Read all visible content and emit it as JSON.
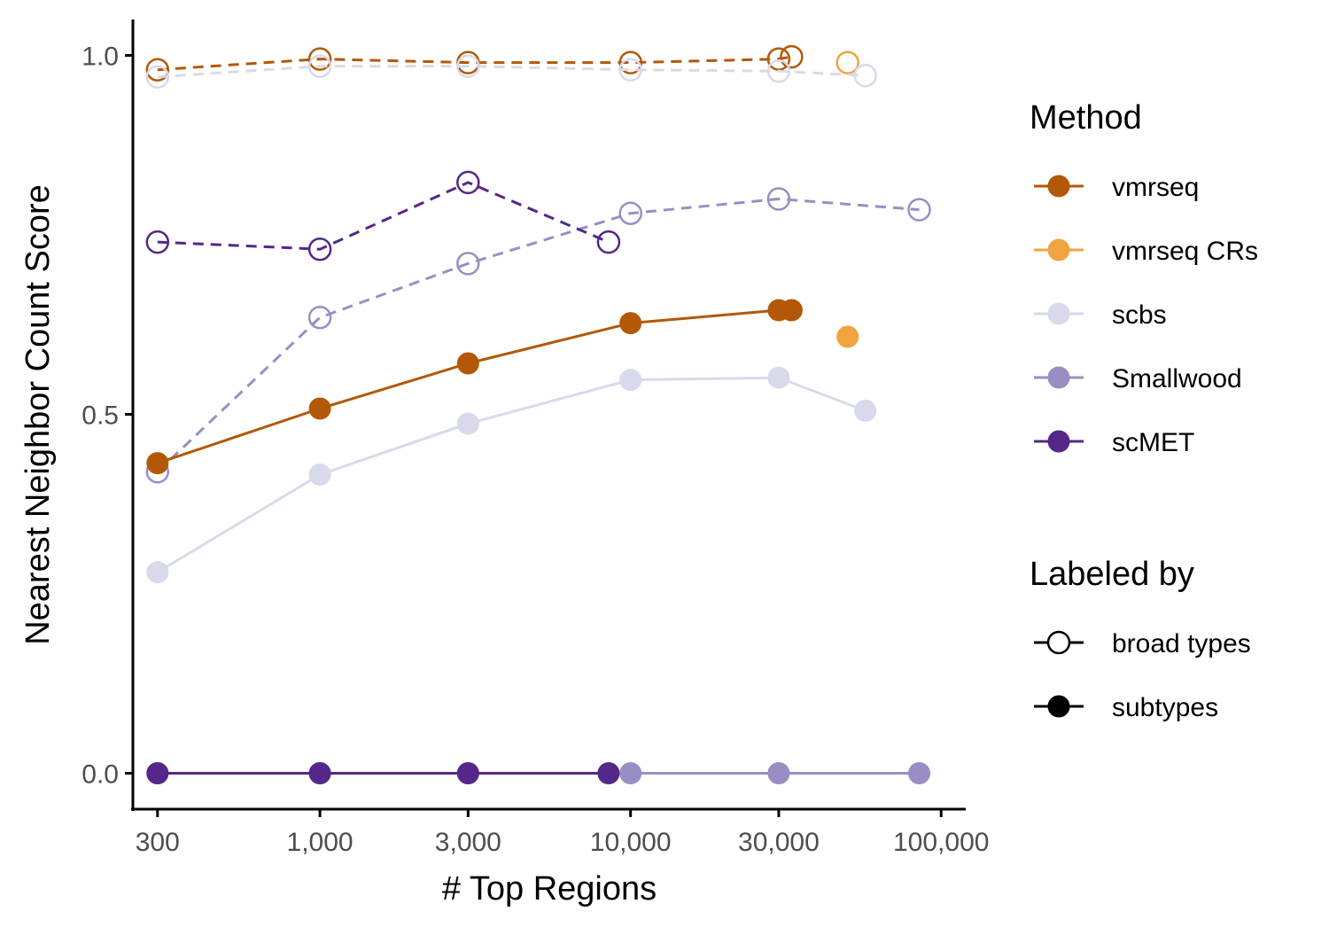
{
  "chart_data": {
    "type": "line",
    "xlabel": "# Top Regions",
    "ylabel": "Nearest Neighbor Count Score",
    "x_scale": "log10",
    "xlim": [
      250,
      120000
    ],
    "ylim": [
      -0.05,
      1.05
    ],
    "x_ticks": [
      {
        "value": 300,
        "label": "300"
      },
      {
        "value": 1000,
        "label": "1,000"
      },
      {
        "value": 3000,
        "label": "3,000"
      },
      {
        "value": 10000,
        "label": "10,000"
      },
      {
        "value": 30000,
        "label": "30,000"
      },
      {
        "value": 100000,
        "label": "100,000"
      }
    ],
    "y_ticks": [
      {
        "value": 0.0,
        "label": "0.0"
      },
      {
        "value": 0.5,
        "label": "0.5"
      },
      {
        "value": 1.0,
        "label": "1.0"
      }
    ],
    "grid": false,
    "legend_position": "right",
    "legends": [
      {
        "title": "Method",
        "items": [
          {
            "key": "vmrseq",
            "label": "vmrseq",
            "color": "#b35806"
          },
          {
            "key": "vmrseq_crs",
            "label": "vmrseq CRs",
            "color": "#f1a340"
          },
          {
            "key": "scbs",
            "label": "scbs",
            "color": "#d8daeb"
          },
          {
            "key": "smallwood",
            "label": "Smallwood",
            "color": "#998ec3"
          },
          {
            "key": "scmet",
            "label": "scMET",
            "color": "#542788"
          }
        ]
      },
      {
        "title": "Labeled by",
        "items": [
          {
            "key": "broad",
            "label": "broad types",
            "shape": "open-circle",
            "linetype": "dashed"
          },
          {
            "key": "sub",
            "label": "subtypes",
            "shape": "filled-circle",
            "linetype": "solid"
          }
        ]
      }
    ],
    "series": [
      {
        "method": "vmrseq",
        "labeled_by": "broad",
        "color": "#b35806",
        "x": [
          300,
          1000,
          3000,
          10000,
          30000,
          33000
        ],
        "y": [
          0.98,
          0.995,
          0.99,
          0.99,
          0.995,
          0.998
        ]
      },
      {
        "method": "vmrseq_crs",
        "labeled_by": "broad",
        "color": "#f1a340",
        "x": [
          50000
        ],
        "y": [
          0.99
        ]
      },
      {
        "method": "scbs",
        "labeled_by": "broad",
        "color": "#d8daeb",
        "x": [
          300,
          1000,
          3000,
          10000,
          30000,
          57000
        ],
        "y": [
          0.97,
          0.985,
          0.985,
          0.98,
          0.978,
          0.972
        ]
      },
      {
        "method": "smallwood",
        "labeled_by": "broad",
        "color": "#998ec3",
        "x": [
          300,
          1000,
          3000,
          10000,
          30000,
          85000
        ],
        "y": [
          0.42,
          0.635,
          0.71,
          0.78,
          0.8,
          0.785
        ]
      },
      {
        "method": "scmet",
        "labeled_by": "broad",
        "color": "#542788",
        "x": [
          300,
          1000,
          3000,
          8500
        ],
        "y": [
          0.74,
          0.73,
          0.823,
          0.74
        ]
      },
      {
        "method": "scbs",
        "labeled_by": "sub",
        "color": "#d8daeb",
        "x": [
          300,
          1000,
          3000,
          10000,
          30000,
          57000
        ],
        "y": [
          0.28,
          0.416,
          0.487,
          0.548,
          0.551,
          0.505
        ]
      },
      {
        "method": "vmrseq",
        "labeled_by": "sub",
        "color": "#b35806",
        "x": [
          300,
          1000,
          3000,
          10000,
          30000,
          33000
        ],
        "y": [
          0.432,
          0.508,
          0.571,
          0.627,
          0.645,
          0.645
        ]
      },
      {
        "method": "vmrseq_crs",
        "labeled_by": "sub",
        "color": "#f1a340",
        "x": [
          50000
        ],
        "y": [
          0.608
        ]
      },
      {
        "method": "smallwood",
        "labeled_by": "sub",
        "color": "#998ec3",
        "x": [
          300,
          1000,
          3000,
          10000,
          30000,
          85000
        ],
        "y": [
          0.0,
          0.0,
          0.0,
          0.0,
          0.0,
          0.0
        ]
      },
      {
        "method": "scmet",
        "labeled_by": "sub",
        "color": "#542788",
        "x": [
          300,
          1000,
          3000,
          8500
        ],
        "y": [
          0.0,
          0.0,
          0.0,
          0.0
        ]
      }
    ]
  }
}
